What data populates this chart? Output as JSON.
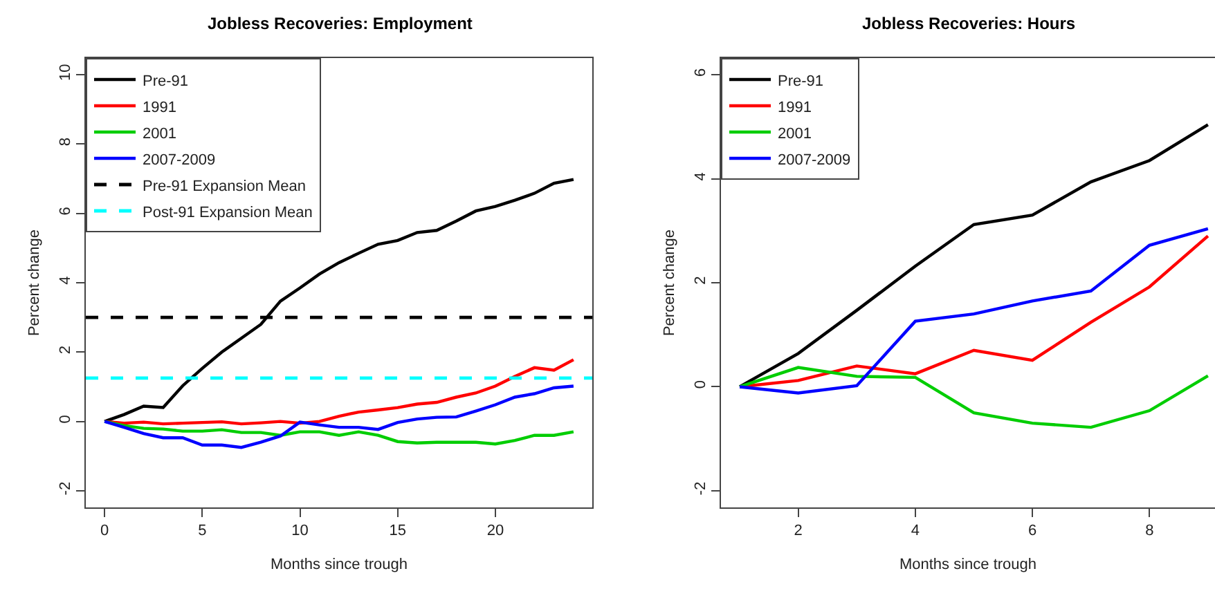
{
  "chart_data": [
    {
      "type": "line",
      "title": "Jobless Recoveries: Employment",
      "xlabel": "Months since trough",
      "ylabel": "Percent change",
      "x": [
        0,
        1,
        2,
        3,
        4,
        5,
        6,
        7,
        8,
        9,
        10,
        11,
        12,
        13,
        14,
        15,
        16,
        17,
        18,
        19,
        20,
        21,
        22,
        23,
        24
      ],
      "series": [
        {
          "name": "Pre-91",
          "color": "#000000",
          "values": [
            0,
            0.2,
            0.44,
            0.4,
            1.03,
            1.53,
            2.0,
            2.4,
            2.8,
            3.47,
            3.85,
            4.25,
            4.58,
            4.85,
            5.11,
            5.22,
            5.45,
            5.51,
            5.78,
            6.07,
            6.2,
            6.38,
            6.58,
            6.87,
            6.98
          ]
        },
        {
          "name": "1991",
          "color": "#ff0000",
          "values": [
            0,
            -0.05,
            -0.02,
            -0.07,
            -0.05,
            -0.03,
            -0.01,
            -0.07,
            -0.04,
            0,
            -0.05,
            0,
            0.15,
            0.27,
            0.33,
            0.4,
            0.5,
            0.55,
            0.7,
            0.82,
            1.02,
            1.3,
            1.55,
            1.48,
            1.78
          ]
        },
        {
          "name": "2001",
          "color": "#00cd00",
          "values": [
            0,
            -0.12,
            -0.2,
            -0.22,
            -0.28,
            -0.28,
            -0.24,
            -0.32,
            -0.32,
            -0.4,
            -0.3,
            -0.3,
            -0.4,
            -0.3,
            -0.4,
            -0.58,
            -0.62,
            -0.6,
            -0.6,
            -0.6,
            -0.65,
            -0.55,
            -0.4,
            -0.4,
            -0.3
          ]
        },
        {
          "name": "2007-2009",
          "color": "#0000ff",
          "values": [
            0,
            -0.17,
            -0.35,
            -0.47,
            -0.47,
            -0.68,
            -0.68,
            -0.75,
            -0.6,
            -0.42,
            -0.02,
            -0.1,
            -0.17,
            -0.17,
            -0.23,
            -0.03,
            0.07,
            0.12,
            0.13,
            0.3,
            0.48,
            0.7,
            0.8,
            0.97,
            1.02
          ]
        }
      ],
      "ref_lines": [
        {
          "axis": "y",
          "value": 3,
          "label": "Pre-91 Expansion Mean",
          "color": "#000000",
          "line_style": "dashed"
        },
        {
          "axis": "y",
          "value": 1.25,
          "label": "Post-91 Expansion Mean",
          "color": "#00ffff",
          "line_style": "dashed"
        }
      ],
      "xlim": [
        -0.96,
        24.96
      ],
      "ylim": [
        -2.48,
        10.48
      ],
      "xticks": [
        0,
        5,
        10,
        15,
        20
      ],
      "yticks": [
        -2,
        0,
        2,
        4,
        6,
        8,
        10
      ],
      "legend": "top left"
    },
    {
      "type": "line",
      "title": "Jobless Recoveries: Hours",
      "xlabel": "Months since trough",
      "ylabel": "Percent change",
      "x": [
        1,
        2,
        3,
        4,
        5,
        6,
        7,
        8,
        9
      ],
      "series": [
        {
          "name": "Pre-91",
          "color": "#000000",
          "values": [
            0,
            0.64,
            1.47,
            2.32,
            3.12,
            3.3,
            3.94,
            4.35,
            5.04
          ]
        },
        {
          "name": "1991",
          "color": "#ff0000",
          "values": [
            0,
            0.12,
            0.4,
            0.25,
            0.7,
            0.51,
            1.24,
            1.92,
            2.9
          ]
        },
        {
          "name": "2001",
          "color": "#00cd00",
          "values": [
            0,
            0.37,
            0.2,
            0.18,
            -0.5,
            -0.7,
            -0.78,
            -0.46,
            0.21
          ]
        },
        {
          "name": "2007-2009",
          "color": "#0000ff",
          "values": [
            0,
            -0.12,
            0.02,
            1.26,
            1.4,
            1.65,
            1.84,
            2.72,
            3.04
          ]
        }
      ],
      "xlim": [
        0.68,
        9.12
      ],
      "ylim": [
        -2.32,
        6.32
      ],
      "xticks": [
        2,
        4,
        6,
        8
      ],
      "yticks": [
        -2,
        0,
        2,
        4,
        6
      ],
      "legend": "top left"
    }
  ]
}
